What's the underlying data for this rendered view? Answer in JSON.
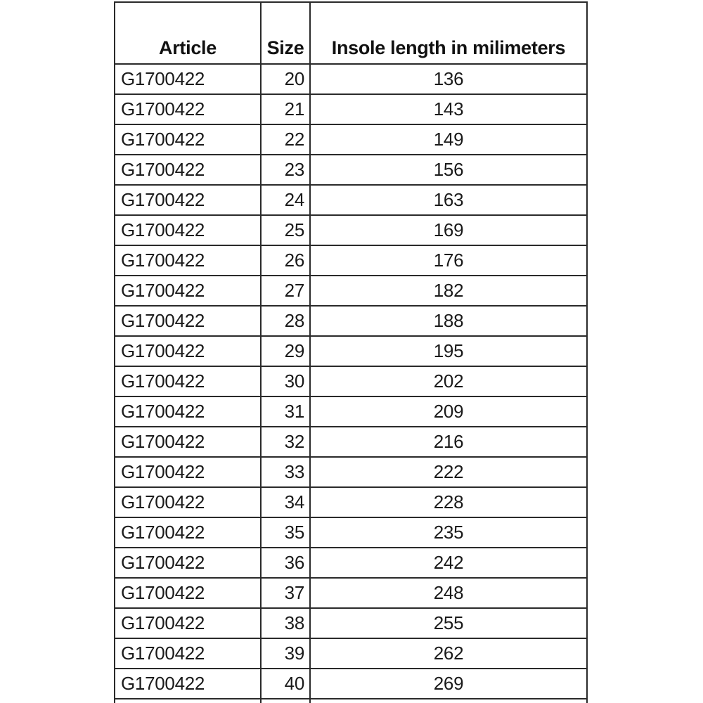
{
  "table": {
    "columns": [
      {
        "key": "article",
        "label": "Article"
      },
      {
        "key": "size",
        "label": "Size"
      },
      {
        "key": "insole",
        "label": "Insole length in milimeters"
      }
    ],
    "rows": [
      {
        "article": "G1700422",
        "size": "20",
        "insole": "136"
      },
      {
        "article": "G1700422",
        "size": "21",
        "insole": "143"
      },
      {
        "article": "G1700422",
        "size": "22",
        "insole": "149"
      },
      {
        "article": "G1700422",
        "size": "23",
        "insole": "156"
      },
      {
        "article": "G1700422",
        "size": "24",
        "insole": "163"
      },
      {
        "article": "G1700422",
        "size": "25",
        "insole": "169"
      },
      {
        "article": "G1700422",
        "size": "26",
        "insole": "176"
      },
      {
        "article": "G1700422",
        "size": "27",
        "insole": "182"
      },
      {
        "article": "G1700422",
        "size": "28",
        "insole": "188"
      },
      {
        "article": "G1700422",
        "size": "29",
        "insole": "195"
      },
      {
        "article": "G1700422",
        "size": "30",
        "insole": "202"
      },
      {
        "article": "G1700422",
        "size": "31",
        "insole": "209"
      },
      {
        "article": "G1700422",
        "size": "32",
        "insole": "216"
      },
      {
        "article": "G1700422",
        "size": "33",
        "insole": "222"
      },
      {
        "article": "G1700422",
        "size": "34",
        "insole": "228"
      },
      {
        "article": "G1700422",
        "size": "35",
        "insole": "235"
      },
      {
        "article": "G1700422",
        "size": "36",
        "insole": "242"
      },
      {
        "article": "G1700422",
        "size": "37",
        "insole": "248"
      },
      {
        "article": "G1700422",
        "size": "38",
        "insole": "255"
      },
      {
        "article": "G1700422",
        "size": "39",
        "insole": "262"
      },
      {
        "article": "G1700422",
        "size": "40",
        "insole": "269"
      }
    ]
  },
  "colors": {
    "background": "#ffffff",
    "border": "#2a2a2a",
    "text": "#1a1a1a"
  }
}
